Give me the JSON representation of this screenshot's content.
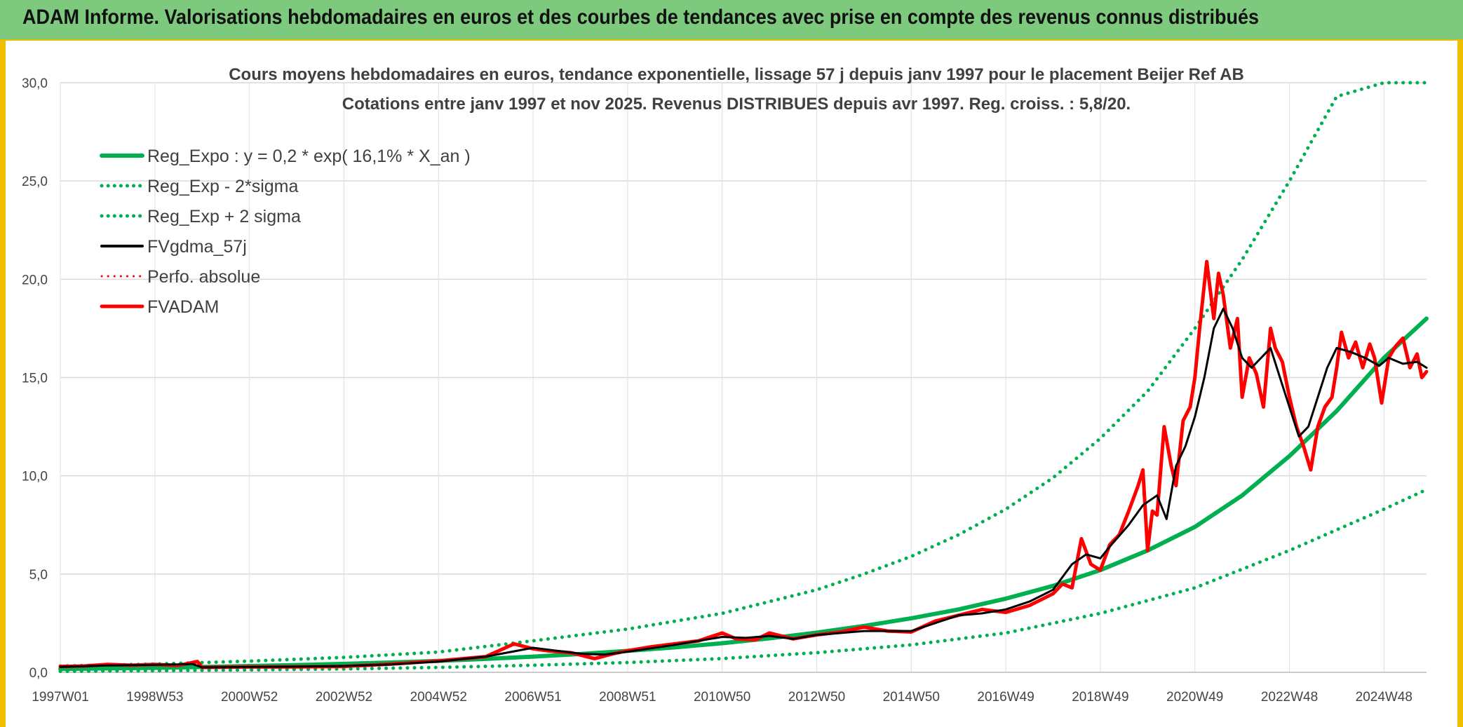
{
  "header": {
    "title": "ADAM Informe. Valorisations hebdomadaires en euros et des courbes de tendances avec prise en compte des revenus connus distribués"
  },
  "chart_data": {
    "type": "line",
    "title": "Cours moyens hebdomadaires en euros, tendance exponentielle, lissage 57 j depuis janv 1997 pour le placement Beijer Ref AB",
    "subtitle": "Cotations entre janv 1997 et nov 2025. Revenus DISTRIBUES depuis avr 1997. Reg. croiss. : 5,8/20.",
    "xlabel": "",
    "ylabel": "",
    "x_range": [
      1997.0,
      2025.9
    ],
    "ylim": [
      0,
      30
    ],
    "y_ticks": [
      "0,0",
      "5,0",
      "10,0",
      "15,0",
      "20,0",
      "25,0",
      "30,0"
    ],
    "x_ticks": [
      {
        "label": "1997W01",
        "x": 1997.0
      },
      {
        "label": "1998W53",
        "x": 1999.0
      },
      {
        "label": "2000W52",
        "x": 2001.0
      },
      {
        "label": "2002W52",
        "x": 2003.0
      },
      {
        "label": "2004W52",
        "x": 2005.0
      },
      {
        "label": "2006W51",
        "x": 2007.0
      },
      {
        "label": "2008W51",
        "x": 2009.0
      },
      {
        "label": "2010W50",
        "x": 2011.0
      },
      {
        "label": "2012W50",
        "x": 2013.0
      },
      {
        "label": "2014W50",
        "x": 2015.0
      },
      {
        "label": "2016W49",
        "x": 2017.0
      },
      {
        "label": "2018W49",
        "x": 2019.0
      },
      {
        "label": "2020W49",
        "x": 2021.0
      },
      {
        "label": "2022W48",
        "x": 2023.0
      },
      {
        "label": "2024W48",
        "x": 2025.0
      }
    ],
    "grid": true,
    "legend_position": "top-left",
    "series": [
      {
        "name": "Reg_Expo : y = 0,2 * exp( 16,1% *  X_an )",
        "color": "#00b050",
        "style": "solid",
        "x": [
          1997,
          1998,
          1999,
          2000,
          2001,
          2002,
          2003,
          2004,
          2005,
          2006,
          2007,
          2008,
          2009,
          2010,
          2011,
          2012,
          2013,
          2014,
          2015,
          2016,
          2017,
          2018,
          2019,
          2020,
          2021,
          2022,
          2023,
          2024,
          2025,
          2025.9
        ],
        "values": [
          0.17,
          0.2,
          0.23,
          0.27,
          0.32,
          0.37,
          0.43,
          0.5,
          0.58,
          0.68,
          0.8,
          0.93,
          1.09,
          1.27,
          1.48,
          1.73,
          2.02,
          2.36,
          2.75,
          3.2,
          3.75,
          4.4,
          5.2,
          6.2,
          7.4,
          9.0,
          11.0,
          13.3,
          16.0,
          18.0
        ]
      },
      {
        "name": "Reg_Exp - 2*sigma",
        "color": "#00b050",
        "style": "dotted",
        "x": [
          1997,
          1999,
          2001,
          2003,
          2005,
          2007,
          2009,
          2011,
          2013,
          2015,
          2017,
          2019,
          2021,
          2023,
          2025,
          2025.9
        ],
        "values": [
          0.05,
          0.08,
          0.12,
          0.17,
          0.25,
          0.36,
          0.5,
          0.7,
          1.0,
          1.4,
          2.0,
          3.0,
          4.3,
          6.2,
          8.3,
          9.3
        ]
      },
      {
        "name": "Reg_Exp + 2 sigma",
        "color": "#00b050",
        "style": "dotted",
        "x": [
          1997,
          1999,
          2001,
          2003,
          2005,
          2007,
          2009,
          2011,
          2013,
          2014,
          2015,
          2016,
          2017,
          2018,
          2019,
          2020,
          2021,
          2022,
          2023,
          2024,
          2025,
          2025.9
        ],
        "values": [
          0.32,
          0.42,
          0.57,
          0.76,
          1.03,
          1.6,
          2.2,
          3.0,
          4.2,
          5.0,
          5.9,
          7.0,
          8.3,
          9.9,
          11.9,
          14.3,
          17.5,
          21.0,
          25.0,
          29.3,
          30.0,
          30.0
        ]
      },
      {
        "name": "FVgdma_57j",
        "color": "#000000",
        "style": "solid",
        "x": [
          1997,
          1998,
          1999,
          1999.8,
          2000,
          2001,
          2002,
          2003,
          2004,
          2005,
          2006,
          2007,
          2007.5,
          2008,
          2008.5,
          2009,
          2010,
          2011,
          2011.5,
          2012,
          2012.5,
          2013,
          2014,
          2015,
          2015.5,
          2016,
          2016.5,
          2017,
          2017.5,
          2018,
          2018.4,
          2018.7,
          2019,
          2019.2,
          2019.6,
          2019.9,
          2020.2,
          2020.4,
          2020.6,
          2020.8,
          2021.0,
          2021.2,
          2021.4,
          2021.6,
          2021.8,
          2022.0,
          2022.2,
          2022.4,
          2022.6,
          2022.8,
          2023.0,
          2023.2,
          2023.4,
          2023.6,
          2023.8,
          2024.0,
          2024.3,
          2024.6,
          2024.9,
          2025.1,
          2025.4,
          2025.7,
          2025.9
        ],
        "values": [
          0.28,
          0.35,
          0.38,
          0.42,
          0.25,
          0.27,
          0.29,
          0.32,
          0.4,
          0.55,
          0.8,
          1.25,
          1.1,
          0.95,
          0.9,
          1.05,
          1.4,
          1.8,
          1.75,
          1.85,
          1.7,
          1.9,
          2.1,
          2.1,
          2.5,
          2.9,
          3.0,
          3.2,
          3.6,
          4.2,
          5.5,
          6.0,
          5.8,
          6.4,
          7.5,
          8.5,
          9.0,
          7.8,
          10.5,
          11.5,
          13.0,
          15.0,
          17.5,
          18.5,
          17.5,
          16.0,
          15.5,
          16.0,
          16.5,
          15.0,
          13.5,
          12.0,
          12.5,
          14.0,
          15.5,
          16.5,
          16.3,
          16.0,
          15.6,
          16.0,
          15.7,
          15.8,
          15.5
        ]
      },
      {
        "name": "Perfo. absolue",
        "color": "#ff0000",
        "style": "dotted",
        "x": [],
        "values": []
      },
      {
        "name": "FVADAM",
        "color": "#ff0000",
        "style": "solid",
        "x": [
          1997,
          1997.5,
          1998,
          1998.5,
          1999,
          1999.5,
          1999.9,
          2000.0,
          2001,
          2002,
          2003,
          2004,
          2005,
          2006,
          2006.6,
          2007,
          2007.3,
          2007.8,
          2008.3,
          2008.7,
          2009,
          2009.5,
          2010,
          2010.5,
          2011,
          2011.3,
          2011.7,
          2012,
          2012.5,
          2013,
          2013.5,
          2014,
          2014.5,
          2015,
          2015.5,
          2016,
          2016.5,
          2017,
          2017.5,
          2018,
          2018.2,
          2018.4,
          2018.6,
          2018.8,
          2019.0,
          2019.2,
          2019.4,
          2019.6,
          2019.8,
          2019.9,
          2020.0,
          2020.1,
          2020.2,
          2020.35,
          2020.5,
          2020.6,
          2020.75,
          2020.9,
          2021.0,
          2021.1,
          2021.25,
          2021.4,
          2021.5,
          2021.6,
          2021.75,
          2021.9,
          2022.0,
          2022.15,
          2022.3,
          2022.45,
          2022.6,
          2022.7,
          2022.85,
          2023.0,
          2023.15,
          2023.3,
          2023.45,
          2023.6,
          2023.75,
          2023.9,
          2024.0,
          2024.1,
          2024.25,
          2024.4,
          2024.55,
          2024.7,
          2024.8,
          2024.95,
          2025.1,
          2025.25,
          2025.4,
          2025.55,
          2025.7,
          2025.8,
          2025.9
        ],
        "values": [
          0.3,
          0.32,
          0.4,
          0.36,
          0.4,
          0.35,
          0.55,
          0.25,
          0.27,
          0.28,
          0.3,
          0.42,
          0.58,
          0.8,
          1.45,
          1.2,
          1.1,
          1.0,
          0.7,
          0.95,
          1.1,
          1.3,
          1.45,
          1.6,
          2.0,
          1.7,
          1.65,
          2.0,
          1.7,
          1.9,
          2.05,
          2.3,
          2.1,
          2.05,
          2.6,
          2.9,
          3.2,
          3.05,
          3.4,
          4.0,
          4.5,
          4.3,
          6.8,
          5.5,
          5.2,
          6.5,
          7.0,
          8.2,
          9.5,
          10.3,
          6.2,
          8.2,
          8.0,
          12.5,
          10.5,
          9.5,
          12.8,
          13.5,
          15.0,
          17.5,
          20.9,
          18.0,
          20.3,
          19.2,
          16.5,
          18.0,
          14.0,
          16.0,
          15.2,
          13.5,
          17.5,
          16.5,
          15.8,
          14.0,
          12.5,
          11.5,
          10.3,
          12.5,
          13.5,
          14.0,
          15.5,
          17.3,
          16.0,
          16.8,
          15.5,
          16.7,
          16.0,
          13.7,
          16.0,
          16.6,
          17.0,
          15.5,
          16.2,
          15.0,
          15.3
        ]
      }
    ]
  }
}
